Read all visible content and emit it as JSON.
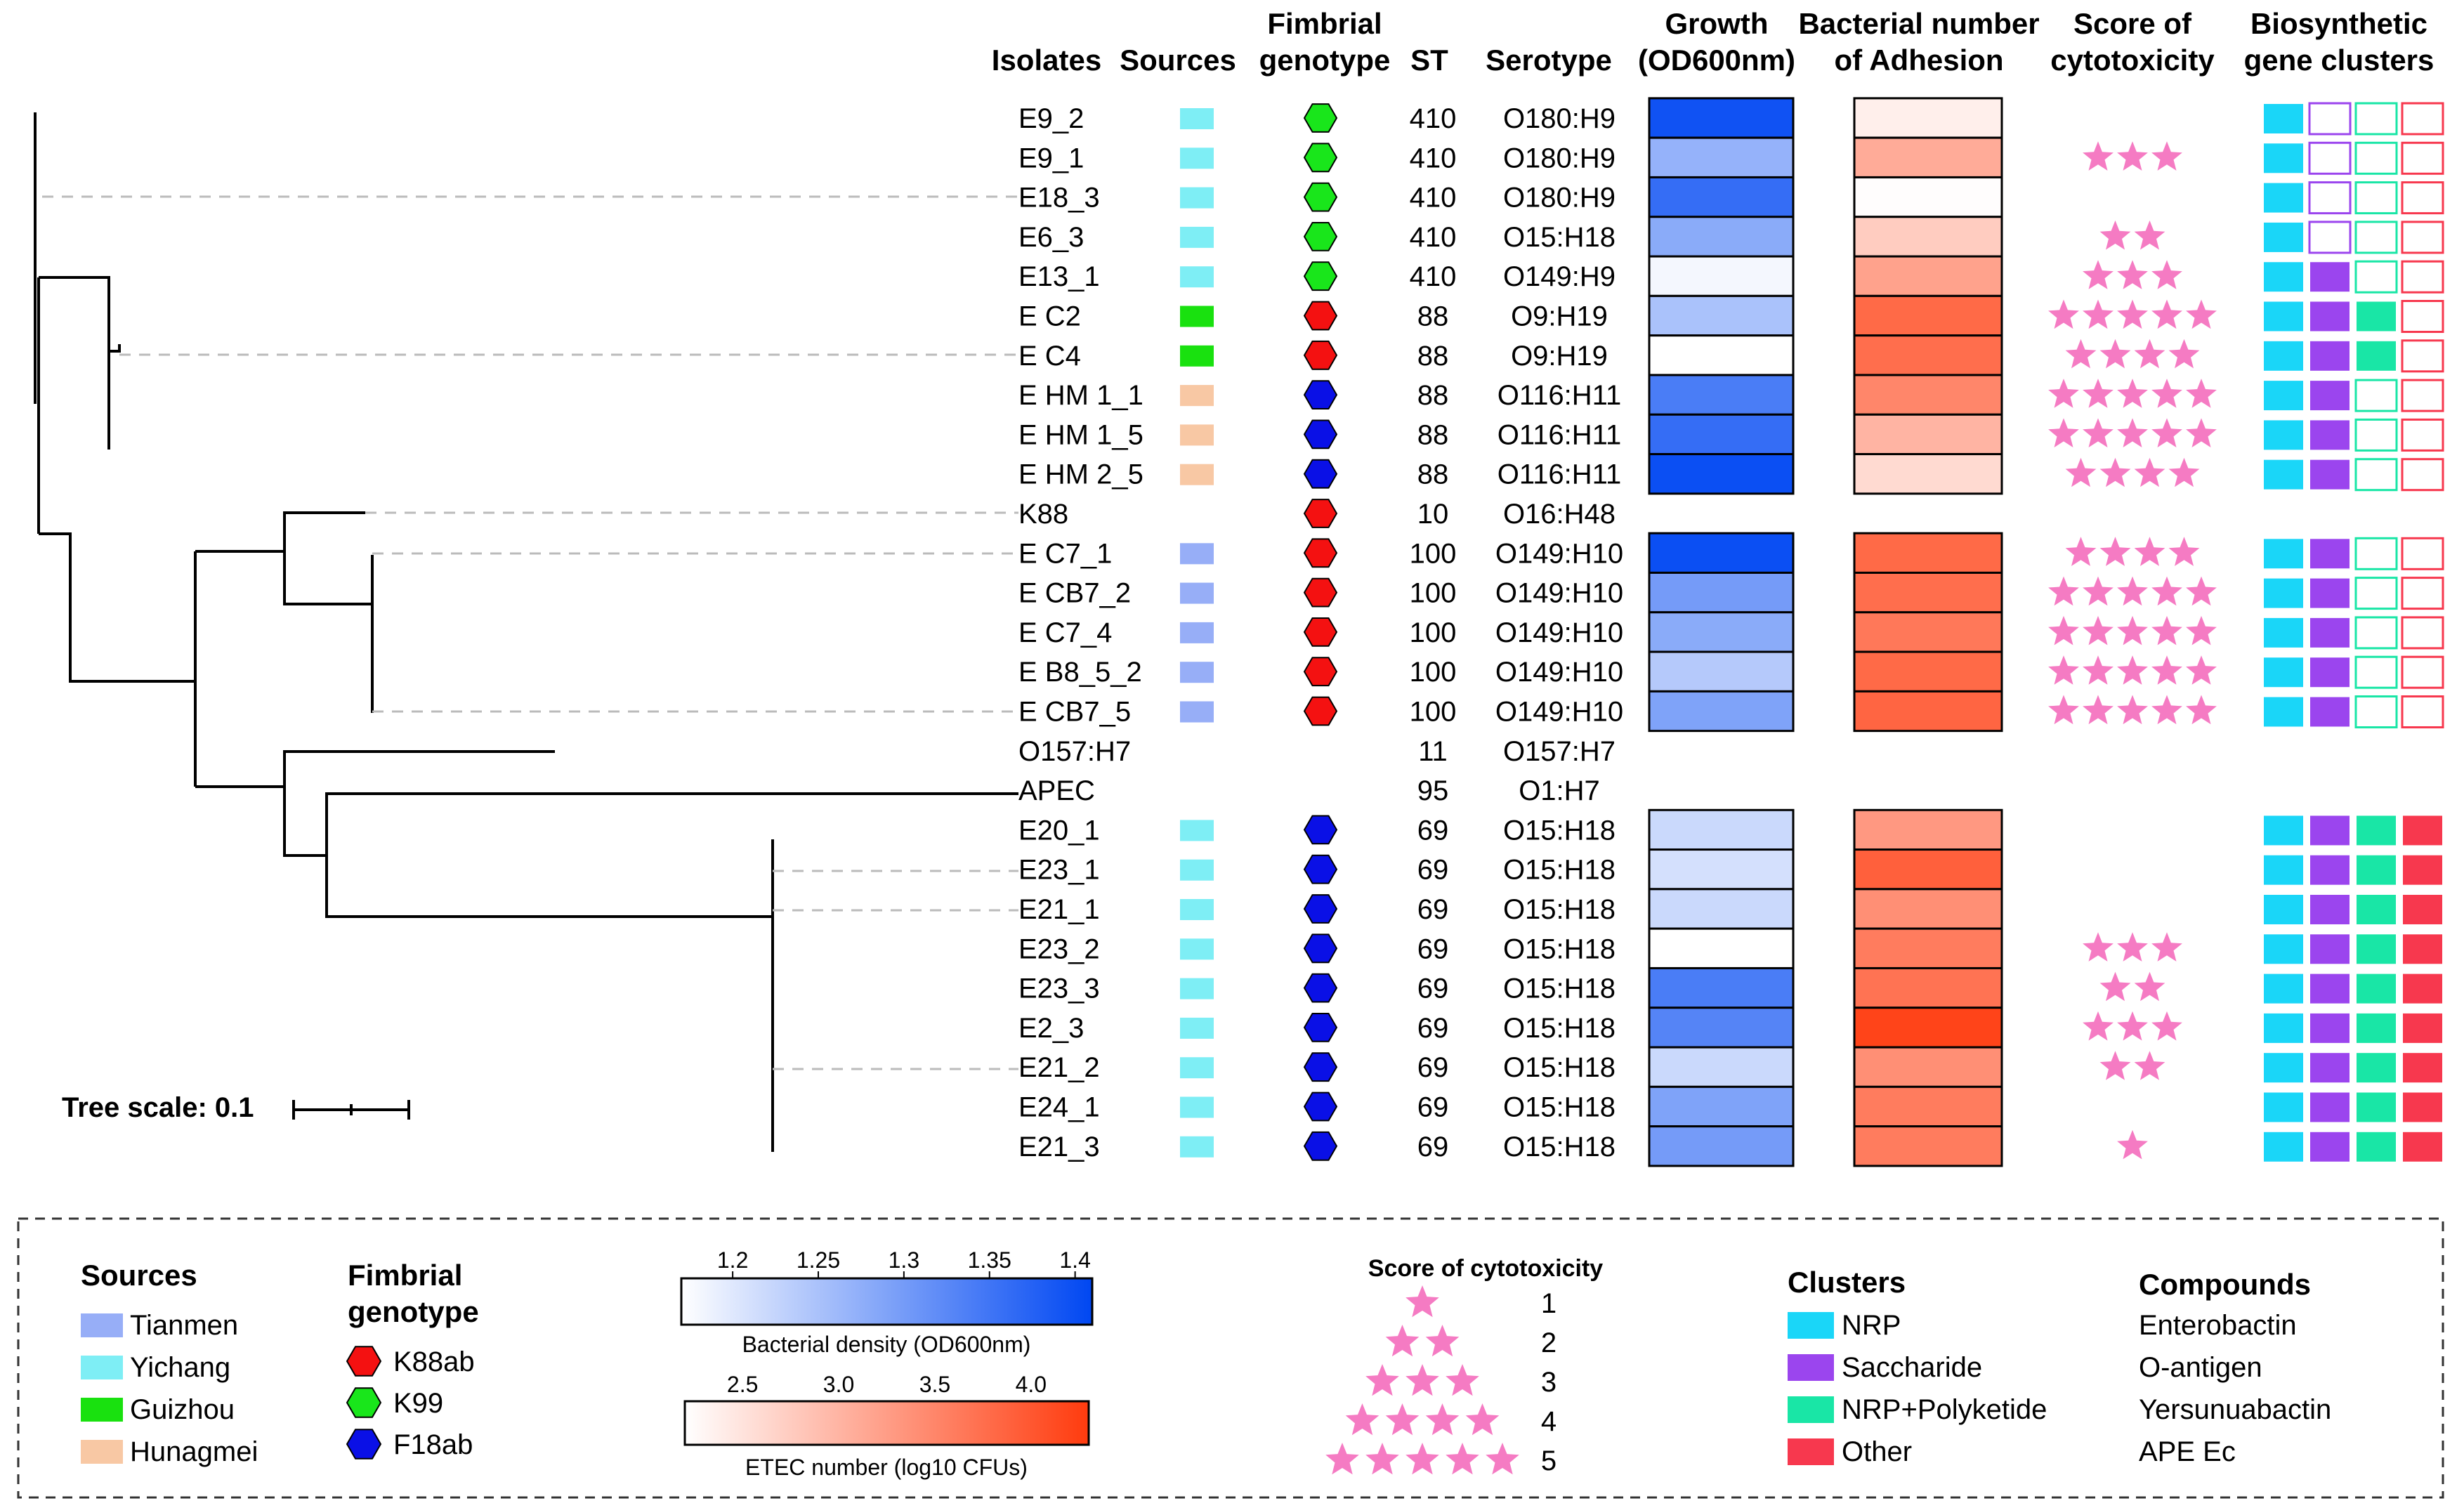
{
  "headers": {
    "isolates": "Isolates",
    "sources": "Sources",
    "fimbrial_l1": "Fimbrial",
    "fimbrial_l2": "genotype",
    "st": "ST",
    "serotype": "Serotype",
    "growth_l1": "Growth",
    "growth_l2": "(OD600nm)",
    "adhesion_l1": "Bacterial number",
    "adhesion_l2": "of Adhesion",
    "cyto_l1": "Score of",
    "cyto_l2": "cytotoxicity",
    "bgc_l1": "Biosynthetic",
    "bgc_l2": "gene clusters"
  },
  "tree_scale": {
    "label": "Tree scale: 0.1",
    "value": 0.1
  },
  "rows": [
    {
      "name": "E9_2",
      "source": "Yichang",
      "fim": "K99",
      "st": "410",
      "serotype": "O180:H9",
      "growth": 1.395,
      "adhesion": 2.37,
      "cyto": 0,
      "bgc": [
        1,
        0,
        0,
        0
      ]
    },
    {
      "name": "E9_1",
      "source": "Yichang",
      "fim": "K99",
      "st": "410",
      "serotype": "O180:H9",
      "growth": 1.27,
      "adhesion": 3.1,
      "cyto": 3,
      "bgc": [
        1,
        0,
        0,
        0
      ]
    },
    {
      "name": "E18_3",
      "source": "Yichang",
      "fim": "K99",
      "st": "410",
      "serotype": "O180:H9",
      "growth": 1.36,
      "adhesion": 2.22,
      "cyto": 0,
      "bgc": [
        1,
        0,
        0,
        0
      ]
    },
    {
      "name": "E6_3",
      "source": "Yichang",
      "fim": "K99",
      "st": "410",
      "serotype": "O15:H18",
      "growth": 1.28,
      "adhesion": 2.75,
      "cyto": 2,
      "bgc": [
        1,
        0,
        0,
        0
      ]
    },
    {
      "name": "E13_1",
      "source": "Yichang",
      "fim": "K99",
      "st": "410",
      "serotype": "O149:H9",
      "growth": 1.18,
      "adhesion": 3.2,
      "cyto": 3,
      "bgc": [
        1,
        1,
        0,
        0
      ]
    },
    {
      "name": "E C2",
      "source": "Guizhou",
      "fim": "K88ab",
      "st": "88",
      "serotype": "O9:H19",
      "growth": 1.25,
      "adhesion": 3.8,
      "cyto": 5,
      "bgc": [
        1,
        1,
        1,
        0
      ]
    },
    {
      "name": "E C4",
      "source": "Guizhou",
      "fim": "K88ab",
      "st": "88",
      "serotype": "O9:H19",
      "growth": 1.16,
      "adhesion": 3.75,
      "cyto": 4,
      "bgc": [
        1,
        1,
        1,
        0
      ]
    },
    {
      "name": "E HM 1_1",
      "source": "Hunagmei",
      "fim": "F18ab",
      "st": "88",
      "serotype": "O116:H11",
      "growth": 1.34,
      "adhesion": 3.5,
      "cyto": 5,
      "bgc": [
        1,
        1,
        0,
        0
      ]
    },
    {
      "name": "E HM 1_5",
      "source": "Hunagmei",
      "fim": "F18ab",
      "st": "88",
      "serotype": "O116:H11",
      "growth": 1.36,
      "adhesion": 3.0,
      "cyto": 5,
      "bgc": [
        1,
        1,
        0,
        0
      ]
    },
    {
      "name": "E HM 2_5",
      "source": "Hunagmei",
      "fim": "F18ab",
      "st": "88",
      "serotype": "O116:H11",
      "growth": 1.4,
      "adhesion": 2.6,
      "cyto": 4,
      "bgc": [
        1,
        1,
        0,
        0
      ]
    },
    {
      "name": "K88",
      "source": null,
      "fim": "K88ab",
      "st": "10",
      "serotype": "O16:H48",
      "growth": null,
      "adhesion": null,
      "cyto": 0,
      "bgc": null
    },
    {
      "name": "E C7_1",
      "source": "Tianmen",
      "fim": "K88ab",
      "st": "100",
      "serotype": "O149:H10",
      "growth": 1.4,
      "adhesion": 3.8,
      "cyto": 4,
      "bgc": [
        1,
        1,
        0,
        0
      ]
    },
    {
      "name": "E CB7_2",
      "source": "Tianmen",
      "fim": "K88ab",
      "st": "100",
      "serotype": "O149:H10",
      "growth": 1.3,
      "adhesion": 3.75,
      "cyto": 5,
      "bgc": [
        1,
        1,
        0,
        0
      ]
    },
    {
      "name": "E C7_4",
      "source": "Tianmen",
      "fim": "K88ab",
      "st": "100",
      "serotype": "O149:H10",
      "growth": 1.28,
      "adhesion": 3.65,
      "cyto": 5,
      "bgc": [
        1,
        1,
        0,
        0
      ]
    },
    {
      "name": "E B8_5_2",
      "source": "Tianmen",
      "fim": "K88ab",
      "st": "100",
      "serotype": "O149:H10",
      "growth": 1.24,
      "adhesion": 3.8,
      "cyto": 5,
      "bgc": [
        1,
        1,
        0,
        0
      ]
    },
    {
      "name": "E CB7_5",
      "source": "Tianmen",
      "fim": "K88ab",
      "st": "100",
      "serotype": "O149:H10",
      "growth": 1.29,
      "adhesion": 3.85,
      "cyto": 5,
      "bgc": [
        1,
        1,
        0,
        0
      ]
    },
    {
      "name": "O157:H7",
      "source": null,
      "fim": null,
      "st": "11",
      "serotype": "O157:H7",
      "growth": null,
      "adhesion": null,
      "cyto": 0,
      "bgc": null
    },
    {
      "name": "APEC",
      "source": null,
      "fim": null,
      "st": "95",
      "serotype": "O1:H7",
      "growth": null,
      "adhesion": null,
      "cyto": 0,
      "bgc": null
    },
    {
      "name": "E20_1",
      "source": "Yichang",
      "fim": "F18ab",
      "st": "69",
      "serotype": "O15:H18",
      "growth": 1.22,
      "adhesion": 3.3,
      "cyto": 0,
      "bgc": [
        1,
        1,
        1,
        1
      ]
    },
    {
      "name": "E23_1",
      "source": "Yichang",
      "fim": "F18ab",
      "st": "69",
      "serotype": "O15:H18",
      "growth": 1.21,
      "adhesion": 3.9,
      "cyto": 0,
      "bgc": [
        1,
        1,
        1,
        1
      ]
    },
    {
      "name": "E21_1",
      "source": "Yichang",
      "fim": "F18ab",
      "st": "69",
      "serotype": "O15:H18",
      "growth": 1.22,
      "adhesion": 3.4,
      "cyto": 0,
      "bgc": [
        1,
        1,
        1,
        1
      ]
    },
    {
      "name": "E23_2",
      "source": "Yichang",
      "fim": "F18ab",
      "st": "69",
      "serotype": "O15:H18",
      "growth": 1.17,
      "adhesion": 3.6,
      "cyto": 3,
      "bgc": [
        1,
        1,
        1,
        1
      ]
    },
    {
      "name": "E23_3",
      "source": "Yichang",
      "fim": "F18ab",
      "st": "69",
      "serotype": "O15:H18",
      "growth": 1.34,
      "adhesion": 3.7,
      "cyto": 2,
      "bgc": [
        1,
        1,
        1,
        1
      ]
    },
    {
      "name": "E2_3",
      "source": "Yichang",
      "fim": "F18ab",
      "st": "69",
      "serotype": "O15:H18",
      "growth": 1.33,
      "adhesion": 4.2,
      "cyto": 3,
      "bgc": [
        1,
        1,
        1,
        1
      ]
    },
    {
      "name": "E21_2",
      "source": "Yichang",
      "fim": "F18ab",
      "st": "69",
      "serotype": "O15:H18",
      "growth": 1.22,
      "adhesion": 3.4,
      "cyto": 2,
      "bgc": [
        1,
        1,
        1,
        1
      ]
    },
    {
      "name": "E24_1",
      "source": "Yichang",
      "fim": "F18ab",
      "st": "69",
      "serotype": "O15:H18",
      "growth": 1.29,
      "adhesion": 3.6,
      "cyto": 0,
      "bgc": [
        1,
        1,
        1,
        1
      ]
    },
    {
      "name": "E21_3",
      "source": "Yichang",
      "fim": "F18ab",
      "st": "69",
      "serotype": "O15:H18",
      "growth": 1.3,
      "adhesion": 3.6,
      "cyto": 1,
      "bgc": [
        1,
        1,
        1,
        1
      ]
    }
  ],
  "legend": {
    "sources_title": "Sources",
    "sources": [
      {
        "label": "Tianmen",
        "color": "#97AEF7"
      },
      {
        "label": "Yichang",
        "color": "#7EEEF5"
      },
      {
        "label": "Guizhou",
        "color": "#19E10F"
      },
      {
        "label": "Hunagmei",
        "color": "#F8C8A4"
      }
    ],
    "fim_title_l1": "Fimbrial",
    "fim_title_l2": "genotype",
    "fim": [
      {
        "label": "K88ab",
        "color": "#F41111"
      },
      {
        "label": "K99",
        "color": "#19E61B"
      },
      {
        "label": "F18ab",
        "color": "#0A10E6"
      }
    ],
    "growth_scale": {
      "ticks": [
        "1.2",
        "1.25",
        "1.3",
        "1.35",
        "1.4"
      ],
      "min": 1.17,
      "max": 1.41,
      "label": "Bacterial density (OD600nm)",
      "color_low": "#FFFFFF",
      "color_high": "#0047F2"
    },
    "adhesion_scale": {
      "ticks": [
        "2.5",
        "3.0",
        "3.5",
        "4.0"
      ],
      "min": 2.2,
      "max": 4.3,
      "label": "ETEC number (log10 CFUs)",
      "color_low": "#FFFFFF",
      "color_high": "#FF3B0E"
    },
    "cyto_title": "Score of cytotoxicity",
    "cyto_levels": [
      "1",
      "2",
      "3",
      "4",
      "5"
    ],
    "star_color": "#F57BC3",
    "clusters_title": "Clusters",
    "clusters": [
      {
        "label": "NRP",
        "color": "#1AD6F8"
      },
      {
        "label": "Saccharide",
        "color": "#9B45EE"
      },
      {
        "label": "NRP+Polyketide",
        "color": "#19E6A6"
      },
      {
        "label": "Other",
        "color": "#F7384E"
      }
    ],
    "compounds_title": "Compounds",
    "compounds": [
      "Enterobactin",
      "O-antigen",
      "Yersunuabactin",
      "APE Ec"
    ]
  }
}
